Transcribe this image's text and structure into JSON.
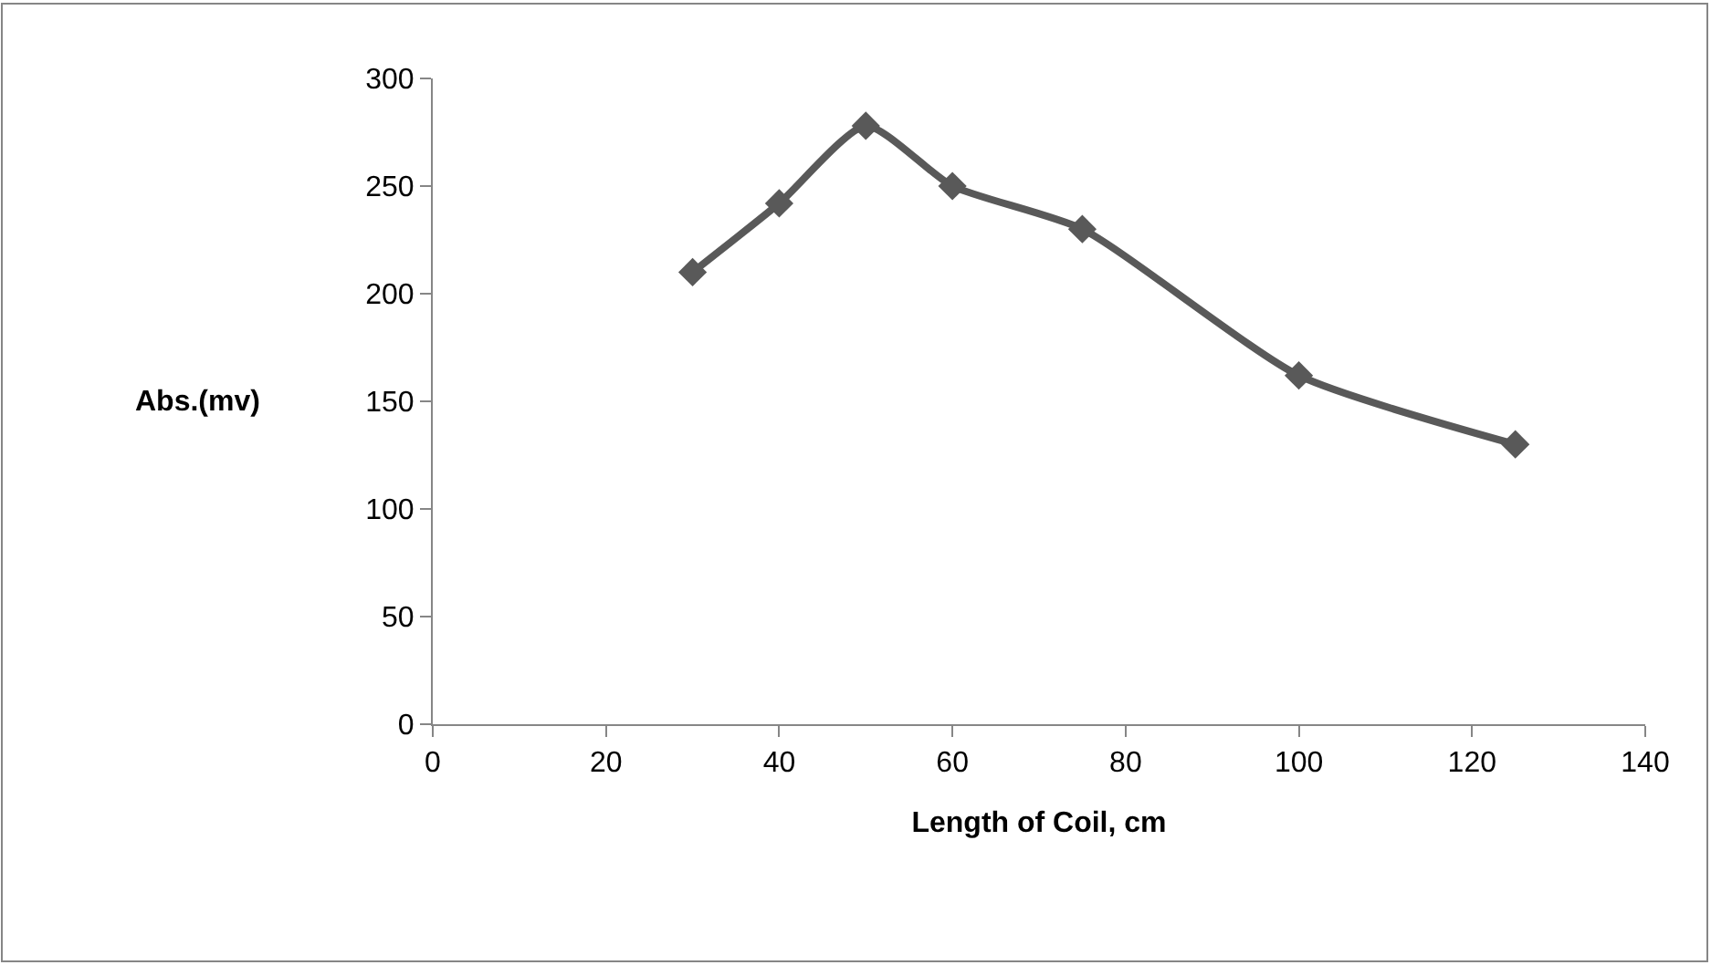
{
  "chart_data": {
    "type": "line",
    "xlabel": "Length of Coil, cm",
    "ylabel": "Abs.(mv)",
    "x": [
      30,
      40,
      50,
      60,
      75,
      100,
      125
    ],
    "series": [
      {
        "color": "#595959",
        "values": [
          210,
          242,
          278,
          250,
          230,
          162,
          130
        ]
      }
    ],
    "xlim": [
      0,
      140
    ],
    "xticks": [
      0,
      20,
      40,
      60,
      80,
      100,
      120,
      140
    ],
    "ylim": [
      0,
      300
    ],
    "yticks": [
      0,
      50,
      100,
      150,
      200,
      250,
      300
    ],
    "marker": "diamond",
    "line_style": "solid"
  }
}
